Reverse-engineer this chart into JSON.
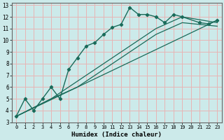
{
  "title": "",
  "xlabel": "Humidex (Indice chaleur)",
  "ylabel": "",
  "bg_color": "#cceaea",
  "grid_color": "#e8b4b4",
  "line_color": "#1a6b5a",
  "xlim": [
    -0.5,
    23.5
  ],
  "ylim": [
    3,
    13.2
  ],
  "xticks": [
    0,
    1,
    2,
    3,
    4,
    5,
    6,
    7,
    8,
    9,
    10,
    11,
    12,
    13,
    14,
    15,
    16,
    17,
    18,
    19,
    20,
    21,
    22,
    23
  ],
  "yticks": [
    3,
    4,
    5,
    6,
    7,
    8,
    9,
    10,
    11,
    12,
    13
  ],
  "series0_x": [
    0,
    1,
    2,
    3,
    4,
    5,
    6,
    7,
    8,
    9,
    10,
    11,
    12,
    13,
    14,
    15,
    16,
    17,
    18,
    19,
    21,
    22,
    23
  ],
  "series0_y": [
    3.5,
    5.0,
    4.0,
    5.0,
    6.0,
    5.0,
    7.5,
    8.5,
    9.5,
    9.8,
    10.5,
    11.1,
    11.35,
    12.8,
    12.2,
    12.2,
    12.0,
    11.5,
    12.2,
    12.0,
    11.5,
    11.4,
    11.7
  ],
  "line1_x": [
    0,
    23
  ],
  "line1_y": [
    3.5,
    11.7
  ],
  "line2_x": [
    0,
    4,
    7,
    10,
    13,
    16,
    19,
    23
  ],
  "line2_y": [
    3.5,
    5.0,
    6.5,
    8.0,
    9.5,
    11.0,
    12.0,
    11.5
  ],
  "line3_x": [
    0,
    4,
    7,
    10,
    13,
    16,
    19,
    23
  ],
  "line3_y": [
    3.5,
    5.0,
    6.0,
    7.5,
    9.0,
    10.5,
    11.5,
    11.2
  ]
}
